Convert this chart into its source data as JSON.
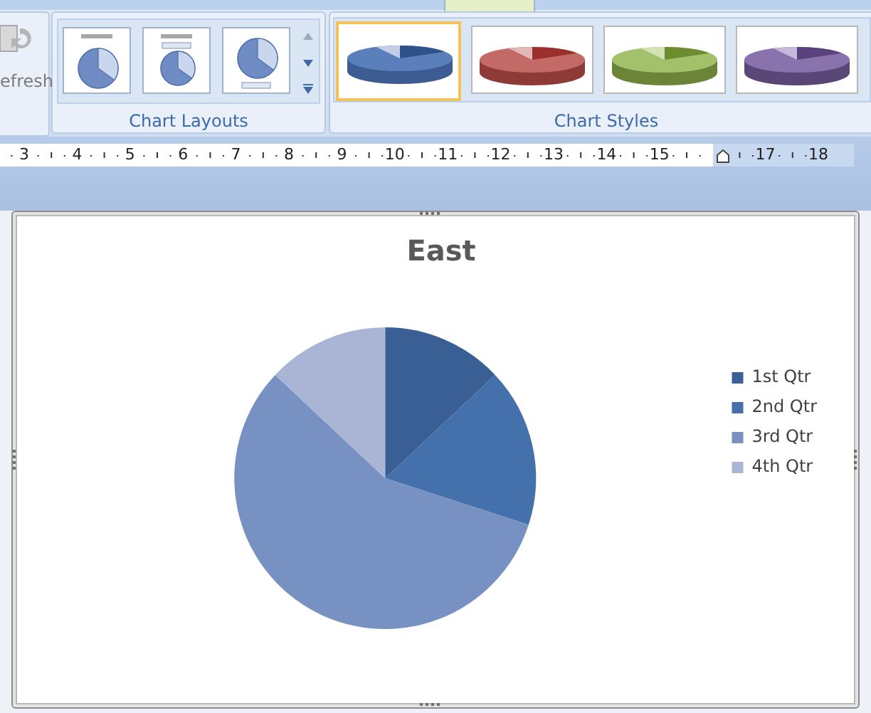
{
  "chart_data": {
    "type": "pie",
    "title": "East",
    "categories": [
      "1st Qtr",
      "2nd Qtr",
      "3rd Qtr",
      "4th Qtr"
    ],
    "values": [
      13,
      17,
      57,
      13
    ],
    "colors": [
      "#3a5f95",
      "#4470ab",
      "#7691c2",
      "#aab4d4"
    ],
    "legend": "right",
    "annotations": [
      "efresh",
      "Chart Layouts",
      "Chart Styles",
      "3",
      "4",
      "5",
      "6",
      "7",
      "8",
      "9",
      "10",
      "11",
      "12",
      "13",
      "14",
      "15",
      "17",
      "18"
    ]
  }
}
